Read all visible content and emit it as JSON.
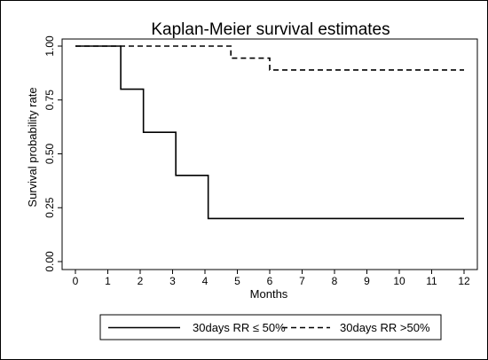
{
  "chart_data": {
    "type": "line",
    "step": true,
    "title": "Kaplan-Meier survival estimates",
    "xlabel": "Months",
    "ylabel": "Survival probability rate",
    "xlim": [
      0,
      12
    ],
    "ylim": [
      0,
      1
    ],
    "x_ticks": [
      "0",
      "1",
      "2",
      "3",
      "4",
      "5",
      "6",
      "7",
      "8",
      "9",
      "10",
      "11",
      "12"
    ],
    "y_ticks": [
      "0.00",
      "0.25",
      "0.50",
      "0.75",
      "1.00"
    ],
    "grid": false,
    "legend_position": "bottom",
    "series": [
      {
        "name": "30days  RR ≤ 50%",
        "line_style": "solid",
        "color": "#000000",
        "points": [
          [
            0,
            1.0
          ],
          [
            1.4,
            0.8
          ],
          [
            2.1,
            0.6
          ],
          [
            3.1,
            0.4
          ],
          [
            4.1,
            0.2
          ],
          [
            12,
            0.2
          ]
        ]
      },
      {
        "name": "30days  RR >50%",
        "line_style": "dashed",
        "color": "#000000",
        "points": [
          [
            0,
            1.0
          ],
          [
            4.8,
            0.944
          ],
          [
            6.0,
            0.889
          ],
          [
            12,
            0.889
          ]
        ]
      }
    ]
  }
}
